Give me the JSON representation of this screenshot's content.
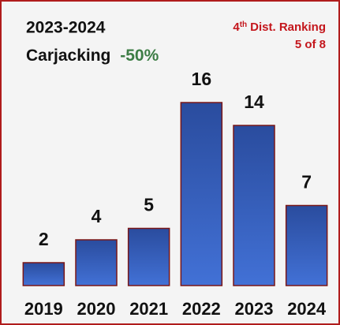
{
  "chart_data": {
    "type": "bar",
    "title": "2023-2024",
    "subtitle": "Carjacking",
    "change": "-50%",
    "ranking": {
      "number": "4",
      "suffix": "th",
      "label": "Dist. Ranking",
      "value": "5 of 8"
    },
    "categories": [
      "2019",
      "2020",
      "2021",
      "2022",
      "2023",
      "2024"
    ],
    "values": [
      2,
      4,
      5,
      16,
      14,
      7
    ],
    "color": "#2f5cc0"
  }
}
